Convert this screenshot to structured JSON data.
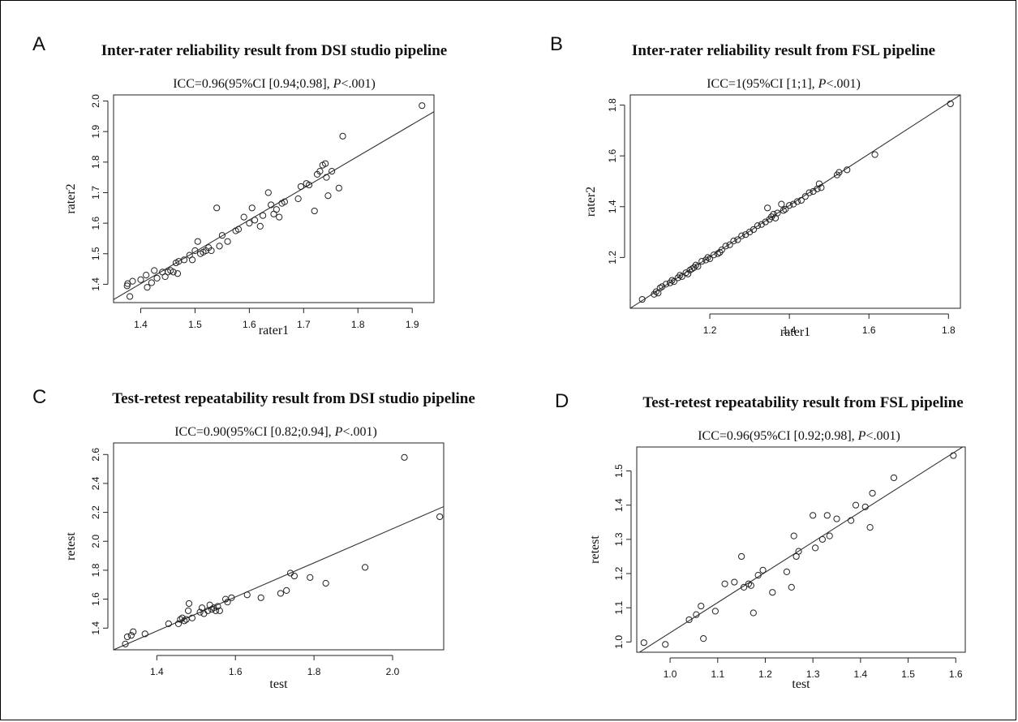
{
  "panels": [
    {
      "letter": "A",
      "title": "Inter-rater reliability result from DSI studio pipeline",
      "icc_prefix": "ICC=0.96(95%CI [0.94;0.98], ",
      "icc_p": "P",
      "icc_suffix": "<.001)"
    },
    {
      "letter": "B",
      "title": "Inter-rater reliability result from FSL pipeline",
      "icc_prefix": "ICC=1(95%CI [1;1], ",
      "icc_p": "P",
      "icc_suffix": "<.001)"
    },
    {
      "letter": "C",
      "title": "Test-retest repeatability result from DSI studio pipeline",
      "icc_prefix": "ICC=0.90(95%CI [0.82;0.94], ",
      "icc_p": "P",
      "icc_suffix": "<.001)"
    },
    {
      "letter": "D",
      "title": "Test-retest repeatability result from FSL pipeline",
      "icc_prefix": "ICC=0.96(95%CI [0.92;0.98], ",
      "icc_p": "P",
      "icc_suffix": "<.001)"
    }
  ],
  "chart_data": [
    {
      "type": "scatter",
      "xlabel": "rater1",
      "ylabel": "rater2",
      "xlim": [
        1.35,
        1.94
      ],
      "ylim": [
        1.34,
        2.02
      ],
      "xticks": [
        1.4,
        1.5,
        1.6,
        1.7,
        1.8,
        1.9
      ],
      "yticks": [
        1.4,
        1.5,
        1.6,
        1.7,
        1.8,
        1.9,
        2.0
      ],
      "fit_line": [
        [
          1.35,
          1.35
        ],
        [
          1.94,
          1.965
        ]
      ],
      "points": [
        [
          1.375,
          1.395
        ],
        [
          1.376,
          1.402
        ],
        [
          1.38,
          1.36
        ],
        [
          1.385,
          1.41
        ],
        [
          1.4,
          1.415
        ],
        [
          1.41,
          1.43
        ],
        [
          1.412,
          1.39
        ],
        [
          1.42,
          1.405
        ],
        [
          1.425,
          1.445
        ],
        [
          1.43,
          1.42
        ],
        [
          1.44,
          1.44
        ],
        [
          1.445,
          1.425
        ],
        [
          1.45,
          1.44
        ],
        [
          1.455,
          1.445
        ],
        [
          1.46,
          1.44
        ],
        [
          1.465,
          1.47
        ],
        [
          1.468,
          1.435
        ],
        [
          1.47,
          1.475
        ],
        [
          1.48,
          1.48
        ],
        [
          1.49,
          1.495
        ],
        [
          1.495,
          1.48
        ],
        [
          1.5,
          1.51
        ],
        [
          1.505,
          1.54
        ],
        [
          1.51,
          1.5
        ],
        [
          1.515,
          1.505
        ],
        [
          1.52,
          1.51
        ],
        [
          1.525,
          1.52
        ],
        [
          1.53,
          1.51
        ],
        [
          1.54,
          1.65
        ],
        [
          1.545,
          1.525
        ],
        [
          1.55,
          1.56
        ],
        [
          1.56,
          1.54
        ],
        [
          1.575,
          1.575
        ],
        [
          1.58,
          1.58
        ],
        [
          1.59,
          1.62
        ],
        [
          1.6,
          1.6
        ],
        [
          1.605,
          1.65
        ],
        [
          1.61,
          1.61
        ],
        [
          1.62,
          1.59
        ],
        [
          1.625,
          1.625
        ],
        [
          1.635,
          1.7
        ],
        [
          1.64,
          1.66
        ],
        [
          1.645,
          1.63
        ],
        [
          1.65,
          1.645
        ],
        [
          1.655,
          1.62
        ],
        [
          1.66,
          1.665
        ],
        [
          1.665,
          1.67
        ],
        [
          1.69,
          1.68
        ],
        [
          1.695,
          1.72
        ],
        [
          1.705,
          1.73
        ],
        [
          1.71,
          1.725
        ],
        [
          1.72,
          1.64
        ],
        [
          1.725,
          1.76
        ],
        [
          1.73,
          1.77
        ],
        [
          1.735,
          1.79
        ],
        [
          1.74,
          1.795
        ],
        [
          1.742,
          1.75
        ],
        [
          1.745,
          1.69
        ],
        [
          1.752,
          1.77
        ],
        [
          1.765,
          1.715
        ],
        [
          1.772,
          1.885
        ],
        [
          1.918,
          1.985
        ]
      ]
    },
    {
      "type": "scatter",
      "xlabel": "rater1",
      "ylabel": "rater2",
      "xlim": [
        1.0,
        1.83
      ],
      "ylim": [
        1.0,
        1.84
      ],
      "xticks": [
        1.2,
        1.4,
        1.6,
        1.8
      ],
      "yticks": [
        1.2,
        1.4,
        1.6,
        1.8
      ],
      "fit_line": [
        [
          1.0,
          1.0
        ],
        [
          1.83,
          1.84
        ]
      ],
      "points": [
        [
          1.03,
          1.035
        ],
        [
          1.06,
          1.055
        ],
        [
          1.065,
          1.065
        ],
        [
          1.07,
          1.06
        ],
        [
          1.075,
          1.08
        ],
        [
          1.08,
          1.085
        ],
        [
          1.09,
          1.095
        ],
        [
          1.1,
          1.1
        ],
        [
          1.105,
          1.11
        ],
        [
          1.11,
          1.105
        ],
        [
          1.12,
          1.12
        ],
        [
          1.125,
          1.13
        ],
        [
          1.13,
          1.125
        ],
        [
          1.14,
          1.14
        ],
        [
          1.145,
          1.135
        ],
        [
          1.15,
          1.15
        ],
        [
          1.155,
          1.155
        ],
        [
          1.16,
          1.16
        ],
        [
          1.165,
          1.17
        ],
        [
          1.17,
          1.165
        ],
        [
          1.18,
          1.185
        ],
        [
          1.19,
          1.19
        ],
        [
          1.195,
          1.2
        ],
        [
          1.2,
          1.195
        ],
        [
          1.21,
          1.21
        ],
        [
          1.22,
          1.215
        ],
        [
          1.225,
          1.22
        ],
        [
          1.23,
          1.23
        ],
        [
          1.24,
          1.245
        ],
        [
          1.25,
          1.25
        ],
        [
          1.26,
          1.265
        ],
        [
          1.27,
          1.27
        ],
        [
          1.28,
          1.285
        ],
        [
          1.29,
          1.29
        ],
        [
          1.3,
          1.3
        ],
        [
          1.31,
          1.31
        ],
        [
          1.32,
          1.325
        ],
        [
          1.33,
          1.33
        ],
        [
          1.34,
          1.34
        ],
        [
          1.345,
          1.395
        ],
        [
          1.35,
          1.35
        ],
        [
          1.355,
          1.36
        ],
        [
          1.36,
          1.37
        ],
        [
          1.365,
          1.355
        ],
        [
          1.37,
          1.375
        ],
        [
          1.38,
          1.41
        ],
        [
          1.385,
          1.385
        ],
        [
          1.39,
          1.39
        ],
        [
          1.4,
          1.405
        ],
        [
          1.41,
          1.41
        ],
        [
          1.42,
          1.42
        ],
        [
          1.43,
          1.425
        ],
        [
          1.44,
          1.44
        ],
        [
          1.45,
          1.455
        ],
        [
          1.46,
          1.46
        ],
        [
          1.47,
          1.47
        ],
        [
          1.475,
          1.49
        ],
        [
          1.48,
          1.475
        ],
        [
          1.52,
          1.525
        ],
        [
          1.525,
          1.535
        ],
        [
          1.545,
          1.545
        ],
        [
          1.615,
          1.605
        ],
        [
          1.805,
          1.805
        ]
      ]
    },
    {
      "type": "scatter",
      "xlabel": "test",
      "ylabel": "retest",
      "xlim": [
        1.29,
        2.13
      ],
      "ylim": [
        1.25,
        2.68
      ],
      "xticks": [
        1.4,
        1.6,
        1.8,
        2.0
      ],
      "yticks": [
        1.4,
        1.6,
        1.8,
        2.0,
        2.2,
        2.4,
        2.6
      ],
      "fit_line": [
        [
          1.29,
          1.25
        ],
        [
          2.13,
          2.24
        ]
      ],
      "points": [
        [
          1.32,
          1.29
        ],
        [
          1.325,
          1.34
        ],
        [
          1.335,
          1.35
        ],
        [
          1.34,
          1.375
        ],
        [
          1.37,
          1.36
        ],
        [
          1.43,
          1.43
        ],
        [
          1.455,
          1.43
        ],
        [
          1.46,
          1.46
        ],
        [
          1.465,
          1.47
        ],
        [
          1.47,
          1.45
        ],
        [
          1.475,
          1.46
        ],
        [
          1.48,
          1.52
        ],
        [
          1.482,
          1.57
        ],
        [
          1.49,
          1.47
        ],
        [
          1.51,
          1.51
        ],
        [
          1.515,
          1.54
        ],
        [
          1.52,
          1.5
        ],
        [
          1.53,
          1.52
        ],
        [
          1.535,
          1.56
        ],
        [
          1.54,
          1.53
        ],
        [
          1.545,
          1.54
        ],
        [
          1.55,
          1.52
        ],
        [
          1.555,
          1.55
        ],
        [
          1.56,
          1.52
        ],
        [
          1.575,
          1.6
        ],
        [
          1.58,
          1.58
        ],
        [
          1.59,
          1.61
        ],
        [
          1.63,
          1.63
        ],
        [
          1.665,
          1.61
        ],
        [
          1.715,
          1.64
        ],
        [
          1.73,
          1.66
        ],
        [
          1.74,
          1.78
        ],
        [
          1.75,
          1.76
        ],
        [
          1.79,
          1.75
        ],
        [
          1.83,
          1.71
        ],
        [
          1.93,
          1.82
        ],
        [
          2.03,
          2.58
        ],
        [
          2.12,
          2.17
        ]
      ]
    },
    {
      "type": "scatter",
      "xlabel": "test",
      "ylabel": "retest",
      "xlim": [
        0.93,
        1.62
      ],
      "ylim": [
        0.97,
        1.57
      ],
      "xticks": [
        1.0,
        1.1,
        1.2,
        1.3,
        1.4,
        1.5,
        1.6
      ],
      "yticks": [
        1.0,
        1.1,
        1.2,
        1.3,
        1.4,
        1.5
      ],
      "fit_line": [
        [
          0.93,
          0.965
        ],
        [
          1.62,
          1.575
        ]
      ],
      "points": [
        [
          0.945,
          0.998
        ],
        [
          0.99,
          0.993
        ],
        [
          1.04,
          1.065
        ],
        [
          1.055,
          1.08
        ],
        [
          1.065,
          1.105
        ],
        [
          1.07,
          1.01
        ],
        [
          1.095,
          1.09
        ],
        [
          1.115,
          1.17
        ],
        [
          1.135,
          1.175
        ],
        [
          1.15,
          1.25
        ],
        [
          1.155,
          1.16
        ],
        [
          1.165,
          1.17
        ],
        [
          1.17,
          1.165
        ],
        [
          1.175,
          1.085
        ],
        [
          1.185,
          1.195
        ],
        [
          1.195,
          1.21
        ],
        [
          1.215,
          1.145
        ],
        [
          1.245,
          1.205
        ],
        [
          1.255,
          1.16
        ],
        [
          1.26,
          1.31
        ],
        [
          1.265,
          1.25
        ],
        [
          1.27,
          1.265
        ],
        [
          1.3,
          1.37
        ],
        [
          1.305,
          1.275
        ],
        [
          1.32,
          1.3
        ],
        [
          1.33,
          1.37
        ],
        [
          1.335,
          1.31
        ],
        [
          1.35,
          1.36
        ],
        [
          1.38,
          1.355
        ],
        [
          1.39,
          1.4
        ],
        [
          1.41,
          1.395
        ],
        [
          1.42,
          1.335
        ],
        [
          1.425,
          1.435
        ],
        [
          1.47,
          1.48
        ],
        [
          1.595,
          1.545
        ]
      ]
    }
  ]
}
